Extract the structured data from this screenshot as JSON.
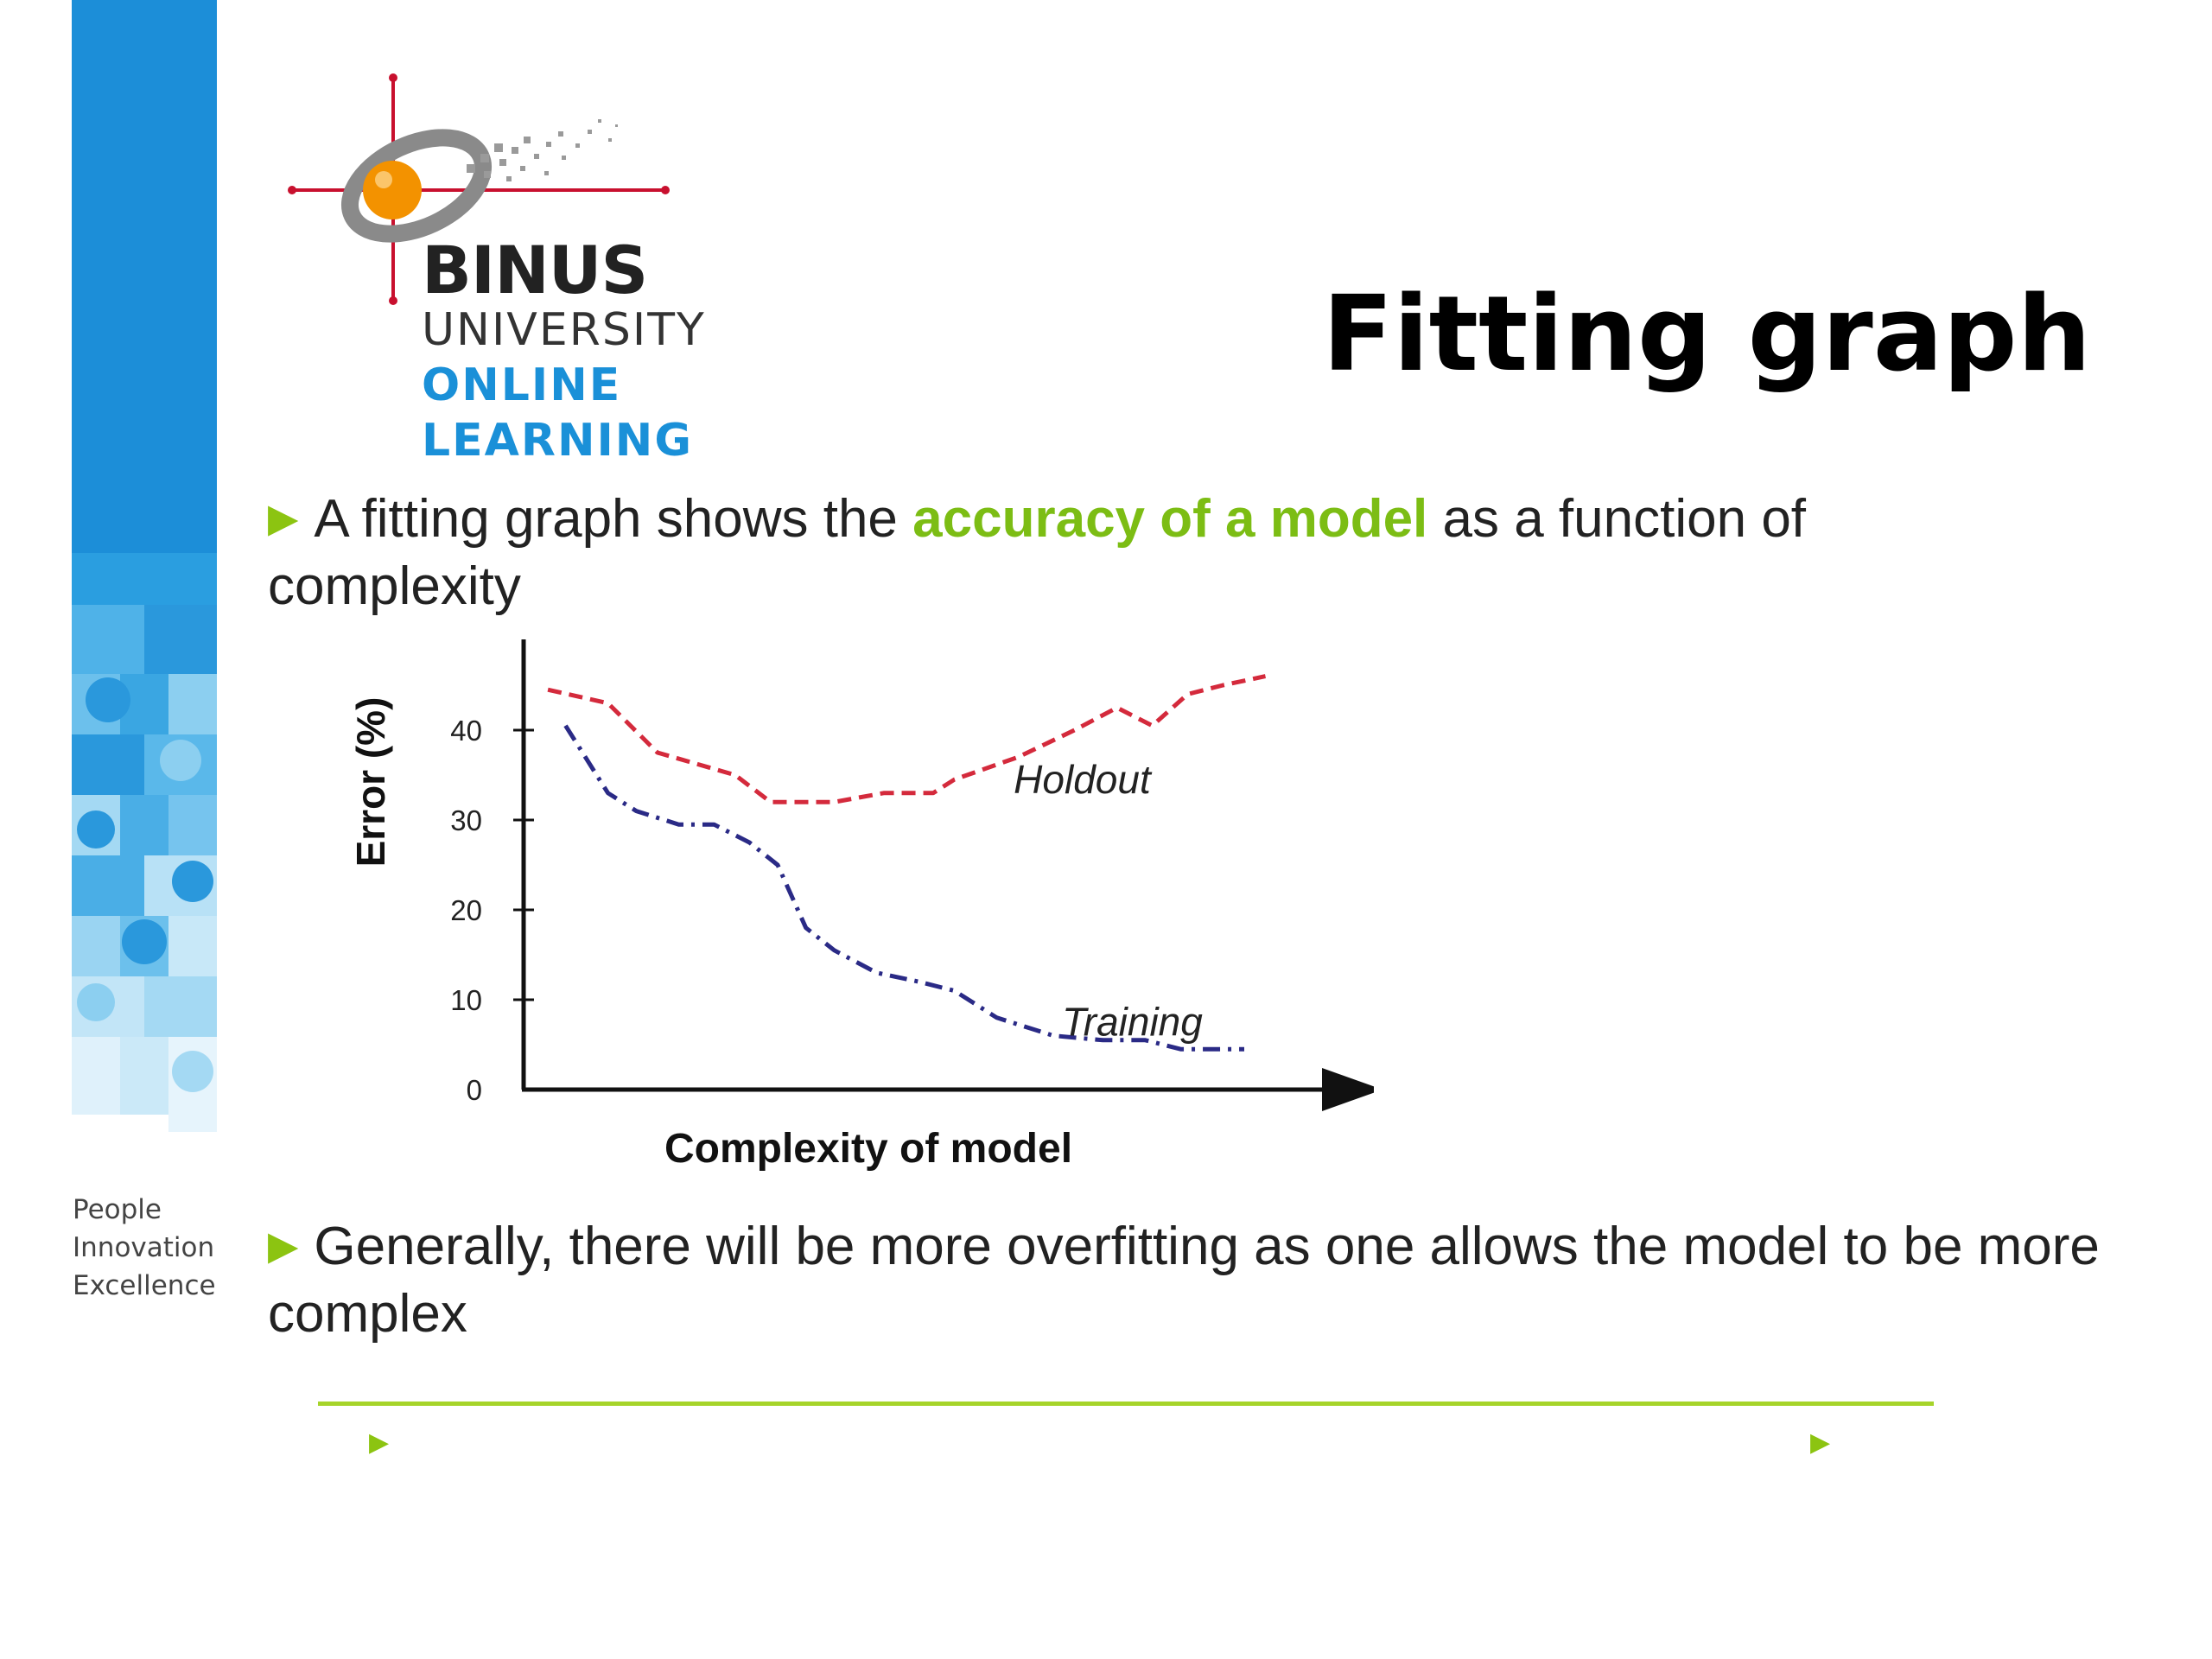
{
  "logo": {
    "line1": "BINUS",
    "line2": "UNIVERSITY",
    "line3": "ONLINE",
    "line4": "LEARNING"
  },
  "tagline": [
    "People",
    "Innovation",
    "Excellence"
  ],
  "title": "Fitting graph",
  "bullet1": {
    "prefix": "A fitting graph shows the ",
    "highlight": "accuracy of a model",
    "suffix": " as a function of complexity"
  },
  "bullet2": {
    "text": "Generally, there will be more overfitting as one allows the model to be more complex"
  },
  "colors": {
    "accent_green": "#8cc411",
    "highlight_green": "#7cbd14",
    "brand_blue": "#1a90d8",
    "holdout_red": "#d42a3c",
    "training_navy": "#2a2a86"
  },
  "chart_data": {
    "type": "line",
    "xlabel": "Complexity of model",
    "ylabel": "Error (%)",
    "ylim": [
      0,
      50
    ],
    "yticks": [
      0,
      10,
      20,
      30,
      40
    ],
    "grid": false,
    "series": [
      {
        "name": "Holdout",
        "style": "dashed",
        "color": "#d42a3c",
        "x": [
          0.05,
          0.9,
          1.6,
          2.7,
          3.2,
          4.1,
          4.8,
          5.5,
          5.8,
          6.7,
          7.5,
          8.1,
          8.6,
          9.1,
          9.6,
          10.2
        ],
        "y": [
          44.5,
          43.0,
          37.5,
          35.0,
          32.0,
          32.0,
          33.0,
          33.0,
          34.5,
          37.0,
          40.0,
          42.5,
          40.5,
          44.0,
          45.0,
          46.0
        ]
      },
      {
        "name": "Training",
        "style": "dashdot",
        "color": "#2a2a86",
        "x": [
          0.3,
          0.9,
          1.3,
          1.9,
          2.4,
          2.9,
          3.3,
          3.7,
          4.1,
          4.7,
          5.3,
          5.8,
          6.4,
          7.2,
          7.9,
          8.5,
          9.0,
          9.9
        ],
        "y": [
          40.5,
          33.0,
          31.0,
          29.5,
          29.5,
          27.5,
          25.0,
          18.0,
          15.5,
          13.0,
          12.0,
          11.0,
          8.0,
          6.0,
          5.5,
          5.5,
          4.5,
          4.5
        ]
      }
    ]
  }
}
